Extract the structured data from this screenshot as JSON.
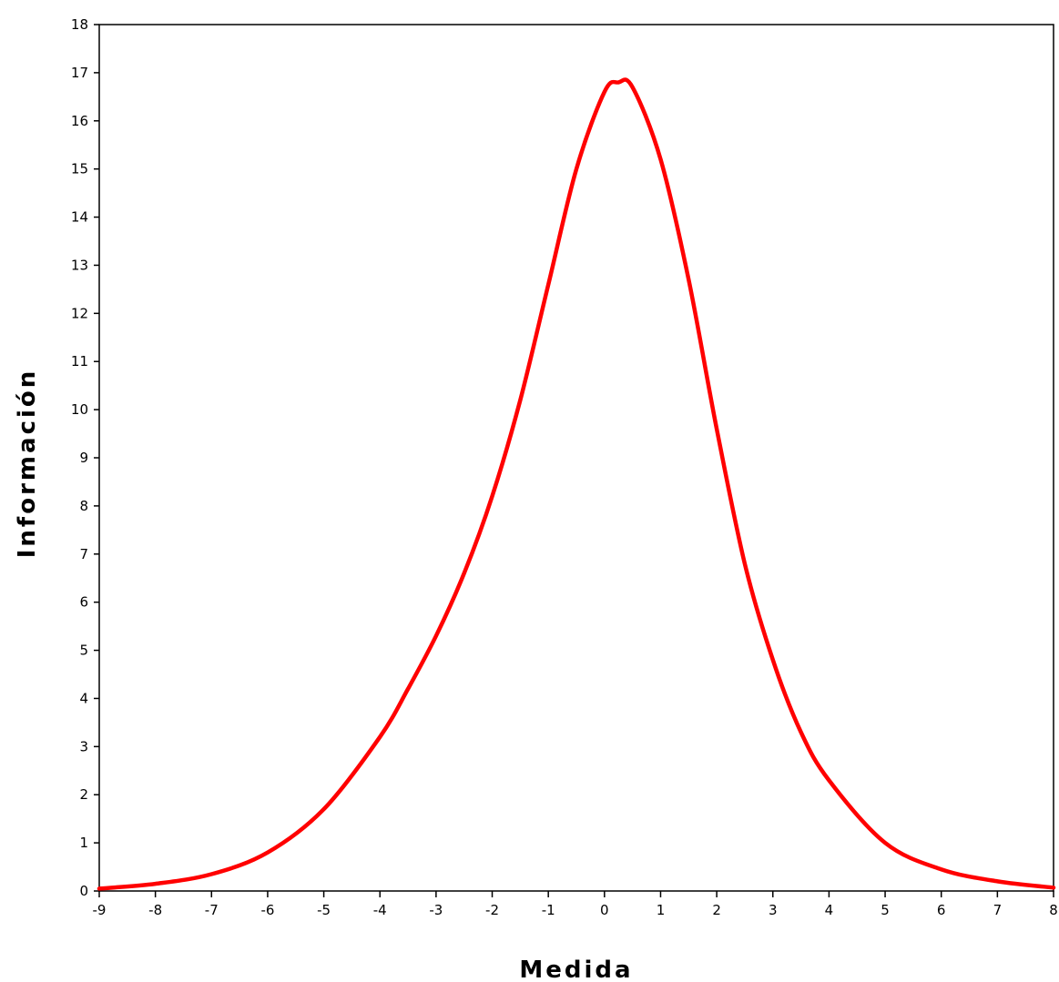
{
  "chart_data": {
    "type": "line",
    "xlabel": "Medida",
    "ylabel": "Información",
    "xlim": [
      -9,
      8
    ],
    "ylim": [
      0,
      18
    ],
    "x_ticks": [
      "-9",
      "-8",
      "-7",
      "-6",
      "-5",
      "-4",
      "-3",
      "-2",
      "-1",
      "0",
      "1",
      "2",
      "3",
      "4",
      "5",
      "6",
      "7",
      "8"
    ],
    "y_ticks": [
      "0",
      "1",
      "2",
      "3",
      "4",
      "5",
      "6",
      "7",
      "8",
      "9",
      "10",
      "11",
      "12",
      "13",
      "14",
      "15",
      "16",
      "17",
      "18"
    ],
    "grid": false,
    "legend": "none",
    "line_color": "#ff0000",
    "series": [
      {
        "x": [
          -9,
          -8,
          -7,
          -6,
          -5,
          -4,
          -3.5,
          -3,
          -2.5,
          -2,
          -1.5,
          -1,
          -0.5,
          0,
          0.25,
          0.5,
          1,
          1.5,
          2,
          2.5,
          3,
          3.5,
          4,
          5,
          6,
          7,
          8
        ],
        "values": [
          0.05,
          0.15,
          0.35,
          0.8,
          1.7,
          3.2,
          4.2,
          5.3,
          6.6,
          8.2,
          10.2,
          12.6,
          15.0,
          16.6,
          16.8,
          16.7,
          15.2,
          12.7,
          9.6,
          6.8,
          4.8,
          3.3,
          2.3,
          1.0,
          0.45,
          0.2,
          0.07
        ]
      }
    ]
  }
}
